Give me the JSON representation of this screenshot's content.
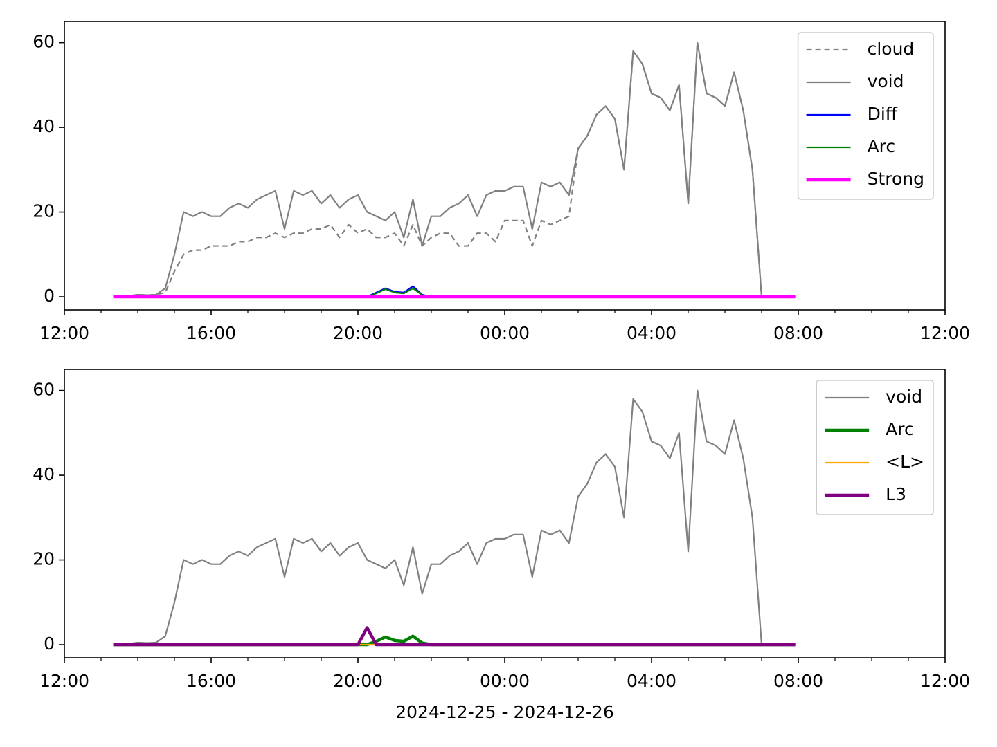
{
  "chart_data": [
    {
      "type": "line",
      "x": [
        "2024-12-25T13:20",
        "2024-12-25T13:30",
        "2024-12-25T13:45",
        "2024-12-25T14:00",
        "2024-12-25T14:15",
        "2024-12-25T14:30",
        "2024-12-25T14:45",
        "2024-12-25T15:00",
        "2024-12-25T15:15",
        "2024-12-25T15:30",
        "2024-12-25T15:45",
        "2024-12-25T16:00",
        "2024-12-25T16:15",
        "2024-12-25T16:30",
        "2024-12-25T16:45",
        "2024-12-25T17:00",
        "2024-12-25T17:15",
        "2024-12-25T17:30",
        "2024-12-25T17:45",
        "2024-12-25T18:00",
        "2024-12-25T18:15",
        "2024-12-25T18:30",
        "2024-12-25T18:45",
        "2024-12-25T19:00",
        "2024-12-25T19:15",
        "2024-12-25T19:30",
        "2024-12-25T19:45",
        "2024-12-25T20:00",
        "2024-12-25T20:15",
        "2024-12-25T20:30",
        "2024-12-25T20:45",
        "2024-12-25T21:00",
        "2024-12-25T21:15",
        "2024-12-25T21:30",
        "2024-12-25T21:45",
        "2024-12-25T22:00",
        "2024-12-25T22:15",
        "2024-12-25T22:30",
        "2024-12-25T22:45",
        "2024-12-25T23:00",
        "2024-12-25T23:15",
        "2024-12-25T23:30",
        "2024-12-25T23:45",
        "2024-12-26T00:00",
        "2024-12-26T00:15",
        "2024-12-26T00:30",
        "2024-12-26T00:45",
        "2024-12-26T01:00",
        "2024-12-26T01:15",
        "2024-12-26T01:30",
        "2024-12-26T01:45",
        "2024-12-26T02:00",
        "2024-12-26T02:15",
        "2024-12-26T02:30",
        "2024-12-26T02:45",
        "2024-12-26T03:00",
        "2024-12-26T03:15",
        "2024-12-26T03:30",
        "2024-12-26T03:45",
        "2024-12-26T04:00",
        "2024-12-26T04:15",
        "2024-12-26T04:30",
        "2024-12-26T04:45",
        "2024-12-26T05:00",
        "2024-12-26T05:15",
        "2024-12-26T05:30",
        "2024-12-26T05:45",
        "2024-12-26T06:00",
        "2024-12-26T06:15",
        "2024-12-26T06:30",
        "2024-12-26T06:45",
        "2024-12-26T07:00",
        "2024-12-26T07:15",
        "2024-12-26T07:30",
        "2024-12-26T07:45",
        "2024-12-26T07:55"
      ],
      "series": [
        {
          "name": "cloud",
          "color": "#808080",
          "linestyle": "dashed",
          "linewidth": 2.2,
          "values": [
            0.3,
            0.2,
            0.2,
            0.5,
            0.4,
            0.5,
            1,
            6,
            10,
            11,
            11,
            12,
            12,
            12,
            13,
            13,
            14,
            14,
            15,
            14,
            15,
            15,
            16,
            16,
            17,
            14,
            17,
            15,
            16,
            14,
            14,
            15,
            12,
            17,
            12,
            14,
            15,
            15,
            12,
            12,
            15,
            15,
            13,
            18,
            18,
            18,
            12,
            18,
            17,
            18,
            19,
            35,
            38,
            43,
            45,
            42,
            30,
            58,
            55,
            48,
            47,
            44,
            50,
            22,
            60,
            48,
            47,
            45,
            53,
            44,
            30,
            0,
            0.2,
            0.1,
            0.2,
            0.2
          ]
        },
        {
          "name": "void",
          "color": "#808080",
          "linestyle": "solid",
          "linewidth": 2.2,
          "values": [
            0.3,
            0.2,
            0.2,
            0.5,
            0.4,
            0.5,
            2,
            10,
            20,
            19,
            20,
            19,
            19,
            21,
            22,
            21,
            23,
            24,
            25,
            16,
            25,
            24,
            25,
            22,
            24,
            21,
            23,
            24,
            20,
            19,
            18,
            20,
            14,
            23,
            12,
            19,
            19,
            21,
            22,
            24,
            19,
            24,
            25,
            25,
            26,
            26,
            16,
            27,
            26,
            27,
            24,
            35,
            38,
            43,
            45,
            42,
            30,
            58,
            55,
            48,
            47,
            44,
            50,
            22,
            60,
            48,
            47,
            45,
            53,
            44,
            30,
            0,
            0.2,
            0.1,
            0.2,
            0.2
          ]
        },
        {
          "name": "Diff",
          "color": "#0000ff",
          "linestyle": "solid",
          "linewidth": 2.2,
          "values": [
            0,
            0,
            0,
            0,
            0,
            0,
            0,
            0,
            0,
            0,
            0,
            0,
            0,
            0,
            0,
            0,
            0,
            0,
            0,
            0,
            0,
            0,
            0,
            0,
            0,
            0,
            0,
            0,
            0,
            1,
            2,
            1.2,
            1,
            2.5,
            0.5,
            0,
            0,
            0,
            0,
            0,
            0,
            0,
            0,
            0,
            0,
            0,
            0,
            0,
            0,
            0,
            0,
            0,
            0,
            0,
            0,
            0,
            0,
            0,
            0,
            0,
            0,
            0,
            0,
            0,
            0,
            0,
            0,
            0,
            0,
            0,
            0,
            0,
            0,
            0,
            0,
            0
          ]
        },
        {
          "name": "Arc",
          "color": "#008000",
          "linestyle": "solid",
          "linewidth": 2.2,
          "values": [
            0,
            0,
            0,
            0,
            0,
            0,
            0,
            0,
            0,
            0,
            0,
            0,
            0,
            0,
            0,
            0,
            0,
            0,
            0,
            0,
            0,
            0,
            0,
            0,
            0,
            0,
            0,
            0,
            0,
            0.8,
            1.8,
            1,
            0.8,
            2,
            0.4,
            0,
            0,
            0,
            0,
            0,
            0,
            0,
            0,
            0,
            0,
            0,
            0,
            0,
            0,
            0,
            0,
            0,
            0,
            0,
            0,
            0,
            0,
            0,
            0,
            0,
            0,
            0,
            0,
            0,
            0,
            0,
            0,
            0,
            0,
            0,
            0,
            0,
            0,
            0,
            0,
            0
          ]
        },
        {
          "name": "Strong",
          "color": "#ff00ff",
          "linestyle": "solid",
          "linewidth": 4.5,
          "values": [
            0,
            0,
            0,
            0,
            0,
            0,
            0,
            0,
            0,
            0,
            0,
            0,
            0,
            0,
            0,
            0,
            0,
            0,
            0,
            0,
            0,
            0,
            0,
            0,
            0,
            0,
            0,
            0,
            0,
            0,
            0,
            0,
            0,
            0,
            0,
            0,
            0,
            0,
            0,
            0,
            0,
            0,
            0,
            0,
            0,
            0,
            0,
            0,
            0,
            0,
            0,
            0,
            0,
            0,
            0,
            0,
            0,
            0,
            0,
            0,
            0,
            0,
            0,
            0,
            0,
            0,
            0,
            0,
            0,
            0,
            0,
            0,
            0,
            0,
            0,
            0
          ]
        }
      ],
      "xlim": [
        "2024-12-25T12:00",
        "2024-12-26T12:00"
      ],
      "xticks": [
        {
          "value": "2024-12-25T12:00",
          "label": "12:00"
        },
        {
          "value": "2024-12-25T16:00",
          "label": "16:00"
        },
        {
          "value": "2024-12-25T20:00",
          "label": "20:00"
        },
        {
          "value": "2024-12-26T00:00",
          "label": "00:00"
        },
        {
          "value": "2024-12-26T04:00",
          "label": "04:00"
        },
        {
          "value": "2024-12-26T08:00",
          "label": "08:00"
        },
        {
          "value": "2024-12-26T12:00",
          "label": "12:00"
        }
      ],
      "xminorticks": [
        "2024-12-25T13:00",
        "2024-12-25T14:00",
        "2024-12-25T15:00",
        "2024-12-25T17:00",
        "2024-12-25T18:00",
        "2024-12-25T19:00",
        "2024-12-25T21:00",
        "2024-12-25T22:00",
        "2024-12-25T23:00",
        "2024-12-26T01:00",
        "2024-12-26T02:00",
        "2024-12-26T03:00",
        "2024-12-26T05:00",
        "2024-12-26T06:00",
        "2024-12-26T07:00",
        "2024-12-26T09:00",
        "2024-12-26T10:00",
        "2024-12-26T11:00"
      ],
      "ylim": [
        -3.1,
        65
      ],
      "yticks": [
        0,
        20,
        40,
        60
      ],
      "legend": "upper right"
    },
    {
      "type": "line",
      "x": [
        "2024-12-25T13:20",
        "2024-12-25T13:30",
        "2024-12-25T13:45",
        "2024-12-25T14:00",
        "2024-12-25T14:15",
        "2024-12-25T14:30",
        "2024-12-25T14:45",
        "2024-12-25T15:00",
        "2024-12-25T15:15",
        "2024-12-25T15:30",
        "2024-12-25T15:45",
        "2024-12-25T16:00",
        "2024-12-25T16:15",
        "2024-12-25T16:30",
        "2024-12-25T16:45",
        "2024-12-25T17:00",
        "2024-12-25T17:15",
        "2024-12-25T17:30",
        "2024-12-25T17:45",
        "2024-12-25T18:00",
        "2024-12-25T18:15",
        "2024-12-25T18:30",
        "2024-12-25T18:45",
        "2024-12-25T19:00",
        "2024-12-25T19:15",
        "2024-12-25T19:30",
        "2024-12-25T19:45",
        "2024-12-25T20:00",
        "2024-12-25T20:15",
        "2024-12-25T20:30",
        "2024-12-25T20:45",
        "2024-12-25T21:00",
        "2024-12-25T21:15",
        "2024-12-25T21:30",
        "2024-12-25T21:45",
        "2024-12-25T22:00",
        "2024-12-25T22:15",
        "2024-12-25T22:30",
        "2024-12-25T22:45",
        "2024-12-25T23:00",
        "2024-12-25T23:15",
        "2024-12-25T23:30",
        "2024-12-25T23:45",
        "2024-12-26T00:00",
        "2024-12-26T00:15",
        "2024-12-26T00:30",
        "2024-12-26T00:45",
        "2024-12-26T01:00",
        "2024-12-26T01:15",
        "2024-12-26T01:30",
        "2024-12-26T01:45",
        "2024-12-26T02:00",
        "2024-12-26T02:15",
        "2024-12-26T02:30",
        "2024-12-26T02:45",
        "2024-12-26T03:00",
        "2024-12-26T03:15",
        "2024-12-26T03:30",
        "2024-12-26T03:45",
        "2024-12-26T04:00",
        "2024-12-26T04:15",
        "2024-12-26T04:30",
        "2024-12-26T04:45",
        "2024-12-26T05:00",
        "2024-12-26T05:15",
        "2024-12-26T05:30",
        "2024-12-26T05:45",
        "2024-12-26T06:00",
        "2024-12-26T06:15",
        "2024-12-26T06:30",
        "2024-12-26T06:45",
        "2024-12-26T07:00",
        "2024-12-26T07:15",
        "2024-12-26T07:30",
        "2024-12-26T07:45",
        "2024-12-26T07:55"
      ],
      "series": [
        {
          "name": "void",
          "color": "#808080",
          "linestyle": "solid",
          "linewidth": 2.2,
          "values": [
            0.3,
            0.2,
            0.2,
            0.5,
            0.4,
            0.5,
            2,
            10,
            20,
            19,
            20,
            19,
            19,
            21,
            22,
            21,
            23,
            24,
            25,
            16,
            25,
            24,
            25,
            22,
            24,
            21,
            23,
            24,
            20,
            19,
            18,
            20,
            14,
            23,
            12,
            19,
            19,
            21,
            22,
            24,
            19,
            24,
            25,
            25,
            26,
            26,
            16,
            27,
            26,
            27,
            24,
            35,
            38,
            43,
            45,
            42,
            30,
            58,
            55,
            48,
            47,
            44,
            50,
            22,
            60,
            48,
            47,
            45,
            53,
            44,
            30,
            0,
            0.2,
            0.1,
            0.2,
            0.2
          ]
        },
        {
          "name": "Arc",
          "color": "#008000",
          "linestyle": "solid",
          "linewidth": 4.5,
          "values": [
            0,
            0,
            0,
            0,
            0,
            0,
            0,
            0,
            0,
            0,
            0,
            0,
            0,
            0,
            0,
            0,
            0,
            0,
            0,
            0,
            0,
            0,
            0,
            0,
            0,
            0,
            0,
            0,
            0,
            0.8,
            1.8,
            1,
            0.8,
            2,
            0.4,
            0,
            0,
            0,
            0,
            0,
            0,
            0,
            0,
            0,
            0,
            0,
            0,
            0,
            0,
            0,
            0,
            0,
            0,
            0,
            0,
            0,
            0,
            0,
            0,
            0,
            0,
            0,
            0,
            0,
            0,
            0,
            0,
            0,
            0,
            0,
            0,
            0,
            0,
            0,
            0,
            0
          ]
        },
        {
          "name": "<L>",
          "color": "#ffa500",
          "linestyle": "solid",
          "linewidth": 2.2,
          "values": [
            0,
            0,
            0,
            0,
            0,
            0,
            0,
            0,
            0,
            0,
            0,
            0,
            0,
            0,
            0,
            0,
            0,
            0,
            0,
            0,
            0,
            0,
            0,
            0,
            0,
            0,
            0,
            0,
            0,
            0,
            0,
            0,
            0,
            0,
            0,
            0,
            0,
            0,
            0,
            0,
            0,
            0,
            0,
            0,
            0,
            0,
            0,
            0,
            0,
            0,
            0,
            0,
            0,
            0,
            0,
            0,
            0,
            0,
            0,
            0,
            0,
            0,
            0,
            0,
            0,
            0,
            0,
            0,
            0,
            0,
            0,
            0,
            0,
            0,
            0,
            0
          ]
        },
        {
          "name": "L3",
          "color": "#800080",
          "linestyle": "solid",
          "linewidth": 4.5,
          "values": [
            0,
            0,
            0,
            0,
            0,
            0,
            0,
            0,
            0,
            0,
            0,
            0,
            0,
            0,
            0,
            0,
            0,
            0,
            0,
            0,
            0,
            0,
            0,
            0,
            0,
            0,
            0,
            0,
            4,
            0,
            0,
            0,
            0,
            0,
            0,
            0,
            0,
            0,
            0,
            0,
            0,
            0,
            0,
            0,
            0,
            0,
            0,
            0,
            0,
            0,
            0,
            0,
            0,
            0,
            0,
            0,
            0,
            0,
            0,
            0,
            0,
            0,
            0,
            0,
            0,
            0,
            0,
            0,
            0,
            0,
            0,
            0,
            0,
            0,
            0,
            0
          ]
        }
      ],
      "xlim": [
        "2024-12-25T12:00",
        "2024-12-26T12:00"
      ],
      "xticks": [
        {
          "value": "2024-12-25T12:00",
          "label": "12:00"
        },
        {
          "value": "2024-12-25T16:00",
          "label": "16:00"
        },
        {
          "value": "2024-12-25T20:00",
          "label": "20:00"
        },
        {
          "value": "2024-12-26T00:00",
          "label": "00:00"
        },
        {
          "value": "2024-12-26T04:00",
          "label": "04:00"
        },
        {
          "value": "2024-12-26T08:00",
          "label": "08:00"
        },
        {
          "value": "2024-12-26T12:00",
          "label": "12:00"
        }
      ],
      "xminorticks": [
        "2024-12-25T13:00",
        "2024-12-25T14:00",
        "2024-12-25T15:00",
        "2024-12-25T17:00",
        "2024-12-25T18:00",
        "2024-12-25T19:00",
        "2024-12-25T21:00",
        "2024-12-25T22:00",
        "2024-12-25T23:00",
        "2024-12-26T01:00",
        "2024-12-26T02:00",
        "2024-12-26T03:00",
        "2024-12-26T05:00",
        "2024-12-26T06:00",
        "2024-12-26T07:00",
        "2024-12-26T09:00",
        "2024-12-26T10:00",
        "2024-12-26T11:00"
      ],
      "ylim": [
        -3.1,
        65
      ],
      "yticks": [
        0,
        20,
        40,
        60
      ],
      "xlabel": "2024-12-25 - 2024-12-26",
      "legend": "upper right"
    }
  ]
}
